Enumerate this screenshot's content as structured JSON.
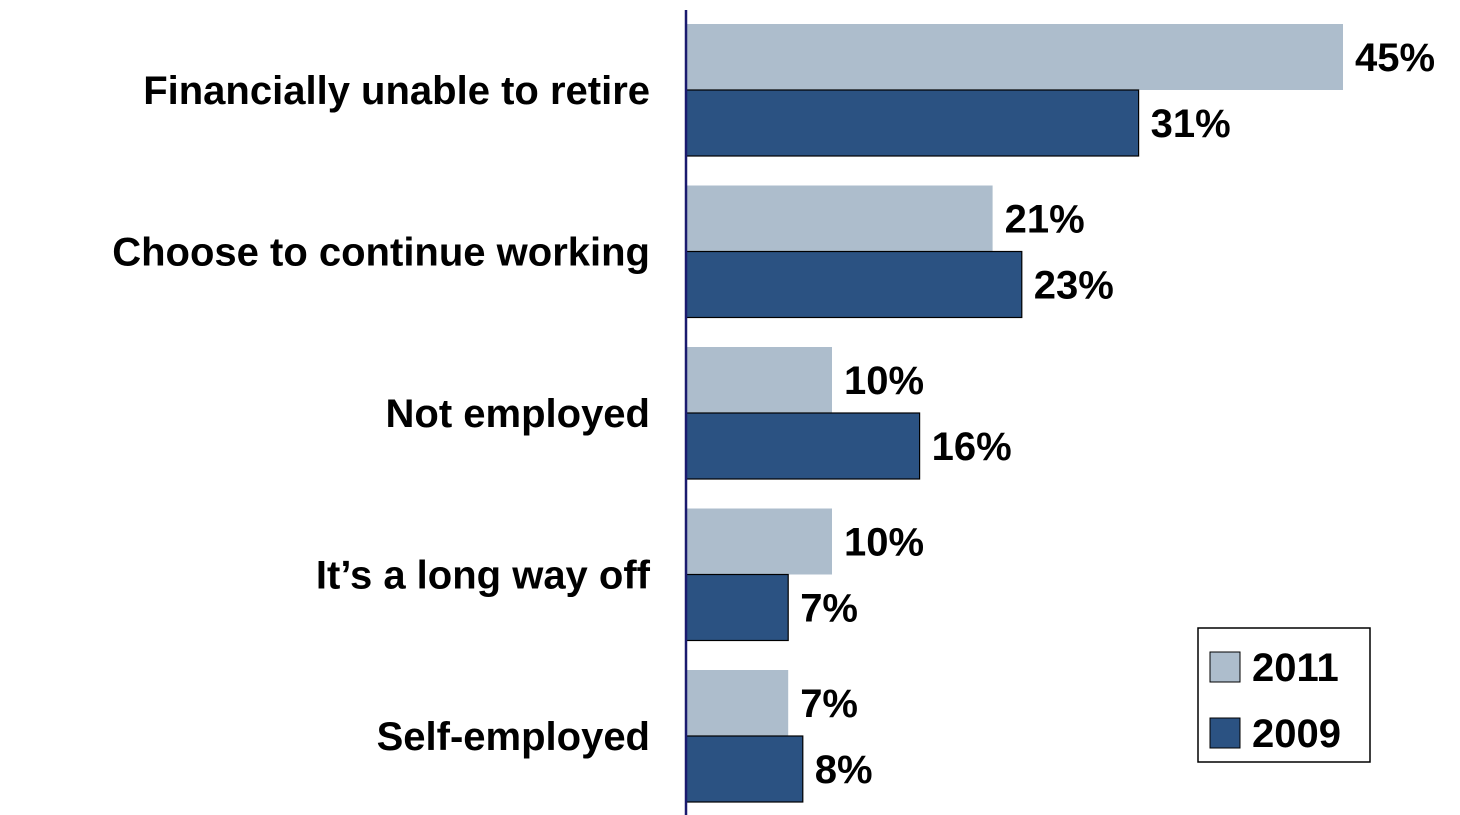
{
  "chart_data": {
    "type": "bar",
    "orientation": "horizontal",
    "categories": [
      "Financially unable to retire",
      "Choose to continue working",
      "Not employed",
      "It’s a long way off",
      "Self-employed"
    ],
    "series": [
      {
        "name": "2011",
        "values": [
          45,
          21,
          10,
          10,
          7
        ],
        "labels": [
          "45%",
          "21%",
          "10%",
          "10%",
          "7%"
        ],
        "color": "#adbdcc"
      },
      {
        "name": "2009",
        "values": [
          31,
          23,
          16,
          7,
          8
        ],
        "labels": [
          "31%",
          "23%",
          "16%",
          "7%",
          "8%"
        ],
        "color": "#2b5282"
      }
    ],
    "xlim": [
      0,
      45
    ],
    "grid": false,
    "legend_position": "bottom-right",
    "axis_color": "#1a1a6e"
  }
}
